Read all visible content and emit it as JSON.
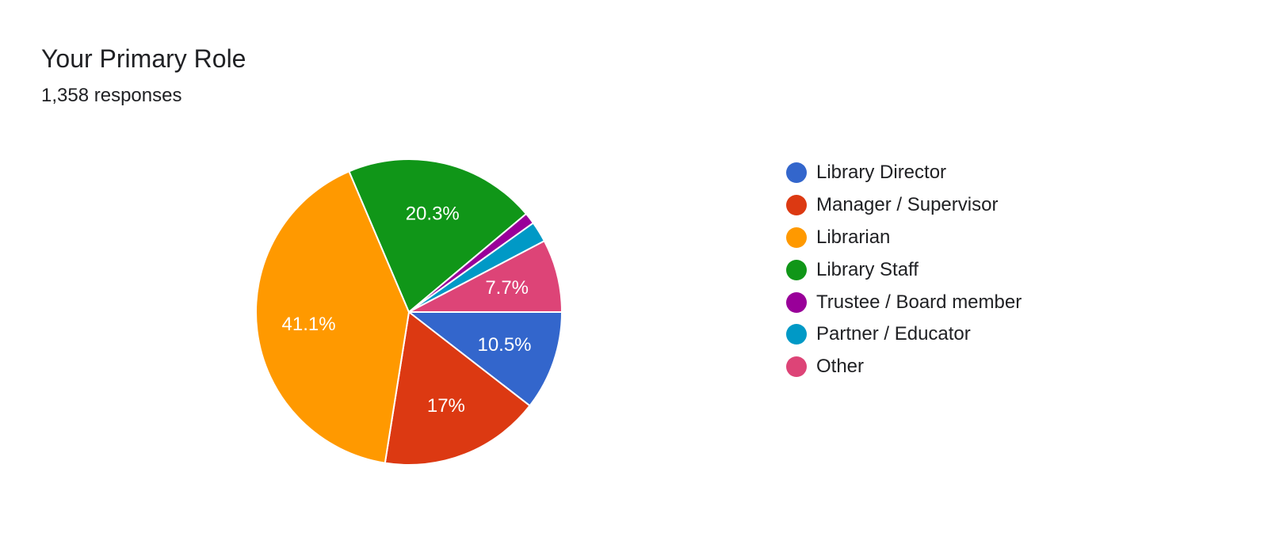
{
  "chart_data": {
    "type": "pie",
    "title": "Your Primary Role",
    "subtitle": "1,358 responses",
    "legend_position": "right",
    "slices": [
      {
        "name": "Library Director",
        "value": 10.5,
        "label": "10.5%",
        "color": "#3366cc"
      },
      {
        "name": "Manager / Supervisor",
        "value": 17.0,
        "label": "17%",
        "color": "#dc3912"
      },
      {
        "name": "Librarian",
        "value": 41.1,
        "label": "41.1%",
        "color": "#ff9900"
      },
      {
        "name": "Library Staff",
        "value": 20.3,
        "label": "20.3%",
        "color": "#109618"
      },
      {
        "name": "Trustee / Board member",
        "value": 1.2,
        "label": "",
        "color": "#990099"
      },
      {
        "name": "Partner / Educator",
        "value": 2.2,
        "label": "",
        "color": "#0099c6"
      },
      {
        "name": "Other",
        "value": 7.7,
        "label": "7.7%",
        "color": "#dd4477"
      }
    ]
  }
}
